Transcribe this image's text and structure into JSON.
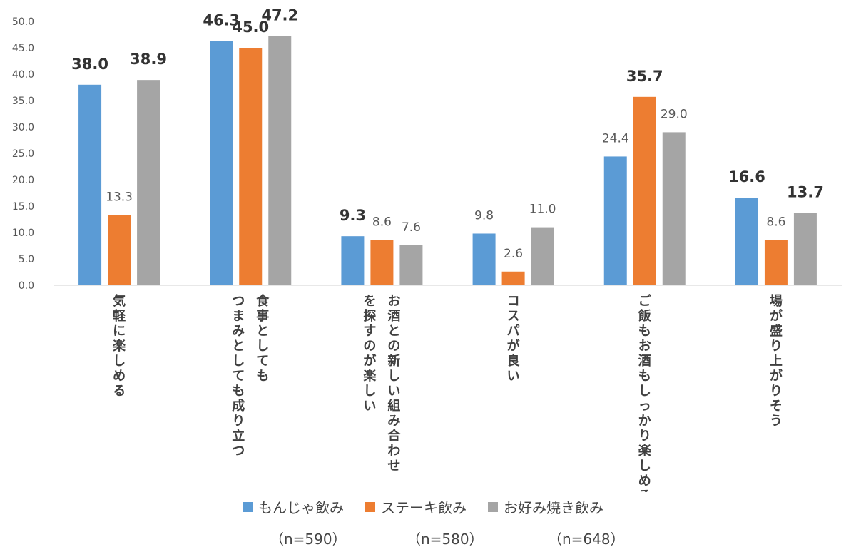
{
  "chart_data": {
    "type": "bar",
    "ylim": [
      0,
      50
    ],
    "yticks": [
      "0.0",
      "5.0",
      "10.0",
      "15.0",
      "20.0",
      "25.0",
      "30.0",
      "35.0",
      "40.0",
      "45.0",
      "50.0"
    ],
    "grid": false,
    "categories": [
      "気軽に楽しめる",
      "つまみとしても成り立つ 食事としても",
      "を探すのが楽しい お酒との新しい組み合わせ",
      "コスパが良い",
      "ご飯もお酒もしっかり楽しめる",
      "場が盛り上がりそう"
    ],
    "category_lines": [
      [
        "気軽に楽しめる"
      ],
      [
        "つまみとしても成り立つ",
        "食事としても"
      ],
      [
        "を探すのが楽しい",
        "お酒との新しい組み合わせ"
      ],
      [
        "コスパが良い"
      ],
      [
        "ご飯もお酒もしっかり楽しめる"
      ],
      [
        "場が盛り上がりそう"
      ]
    ],
    "series": [
      {
        "name": "もんじゃ飲み",
        "n": "（n=590）",
        "color": "#5b9bd5",
        "values": [
          38.0,
          46.3,
          9.3,
          9.8,
          24.4,
          16.6
        ],
        "labels": [
          "38.0",
          "46.3",
          "9.3",
          "9.8",
          "24.4",
          "16.6"
        ],
        "bold": [
          true,
          true,
          true,
          false,
          false,
          true
        ]
      },
      {
        "name": "ステーキ飲み",
        "n": "（n=580）",
        "color": "#ed7d31",
        "values": [
          13.3,
          45.0,
          8.6,
          2.6,
          35.7,
          8.6
        ],
        "labels": [
          "13.3",
          "45.0",
          "8.6",
          "2.6",
          "35.7",
          "8.6"
        ],
        "bold": [
          false,
          true,
          false,
          false,
          true,
          false
        ]
      },
      {
        "name": "お好み焼き飲み",
        "n": "（n=648）",
        "color": "#a5a5a5",
        "values": [
          38.9,
          47.2,
          7.6,
          11.0,
          29.0,
          13.7
        ],
        "labels": [
          "38.9",
          "47.2",
          "7.6",
          "11.0",
          "29.0",
          "13.7"
        ],
        "bold": [
          true,
          true,
          false,
          false,
          false,
          true
        ]
      }
    ]
  }
}
